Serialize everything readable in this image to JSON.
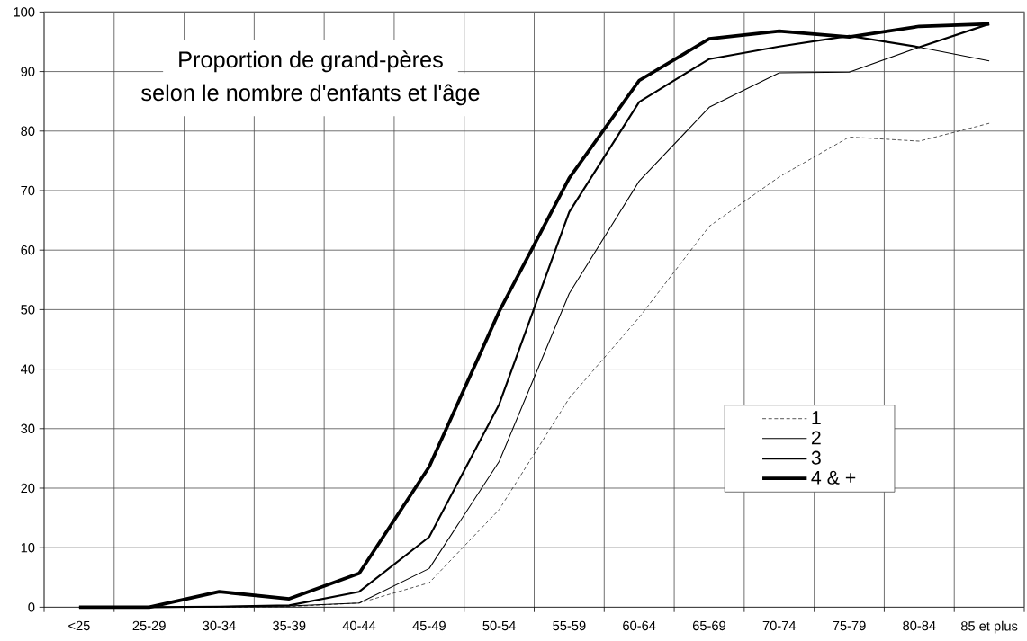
{
  "chart_data": {
    "type": "line",
    "title": "Proportion de grand-pères",
    "subtitle": "selon le nombre d'enfants et l'âge",
    "categories": [
      "<25",
      "25-29",
      "30-34",
      "35-39",
      "40-44",
      "45-49",
      "50-54",
      "55-59",
      "60-64",
      "65-69",
      "70-74",
      "75-79",
      "80-84",
      "85 et plus"
    ],
    "series": [
      {
        "name": "1",
        "color": "#000000",
        "line_style": "dashed",
        "values": [
          0,
          0,
          0,
          0.1,
          0.7,
          4.1,
          16.4,
          35.1,
          48.7,
          64.0,
          72.3,
          79.0,
          78.3,
          81.3
        ]
      },
      {
        "name": "2",
        "color": "#000000",
        "values": [
          0,
          0,
          0.1,
          0.2,
          0.7,
          6.5,
          24.5,
          52.7,
          71.6,
          84.0,
          89.8,
          89.9,
          94.1,
          91.8
        ]
      },
      {
        "name": "3",
        "color": "#000000",
        "values": [
          0,
          0,
          0.1,
          0.3,
          2.6,
          11.8,
          34.1,
          66.4,
          84.9,
          92.1,
          94.2,
          96.0,
          94.1,
          98.0
        ]
      },
      {
        "name": "4 & +",
        "color": "#000000",
        "values": [
          0,
          0,
          2.6,
          1.4,
          5.7,
          23.6,
          49.7,
          72.1,
          88.5,
          95.5,
          96.8,
          95.8,
          97.6,
          98.0
        ]
      }
    ],
    "ylim": [
      0,
      100
    ],
    "yticks": [
      0,
      10,
      20,
      30,
      40,
      50,
      60,
      70,
      80,
      90,
      100
    ],
    "grid": true,
    "legend": "bottom right",
    "line_style": "solid"
  }
}
